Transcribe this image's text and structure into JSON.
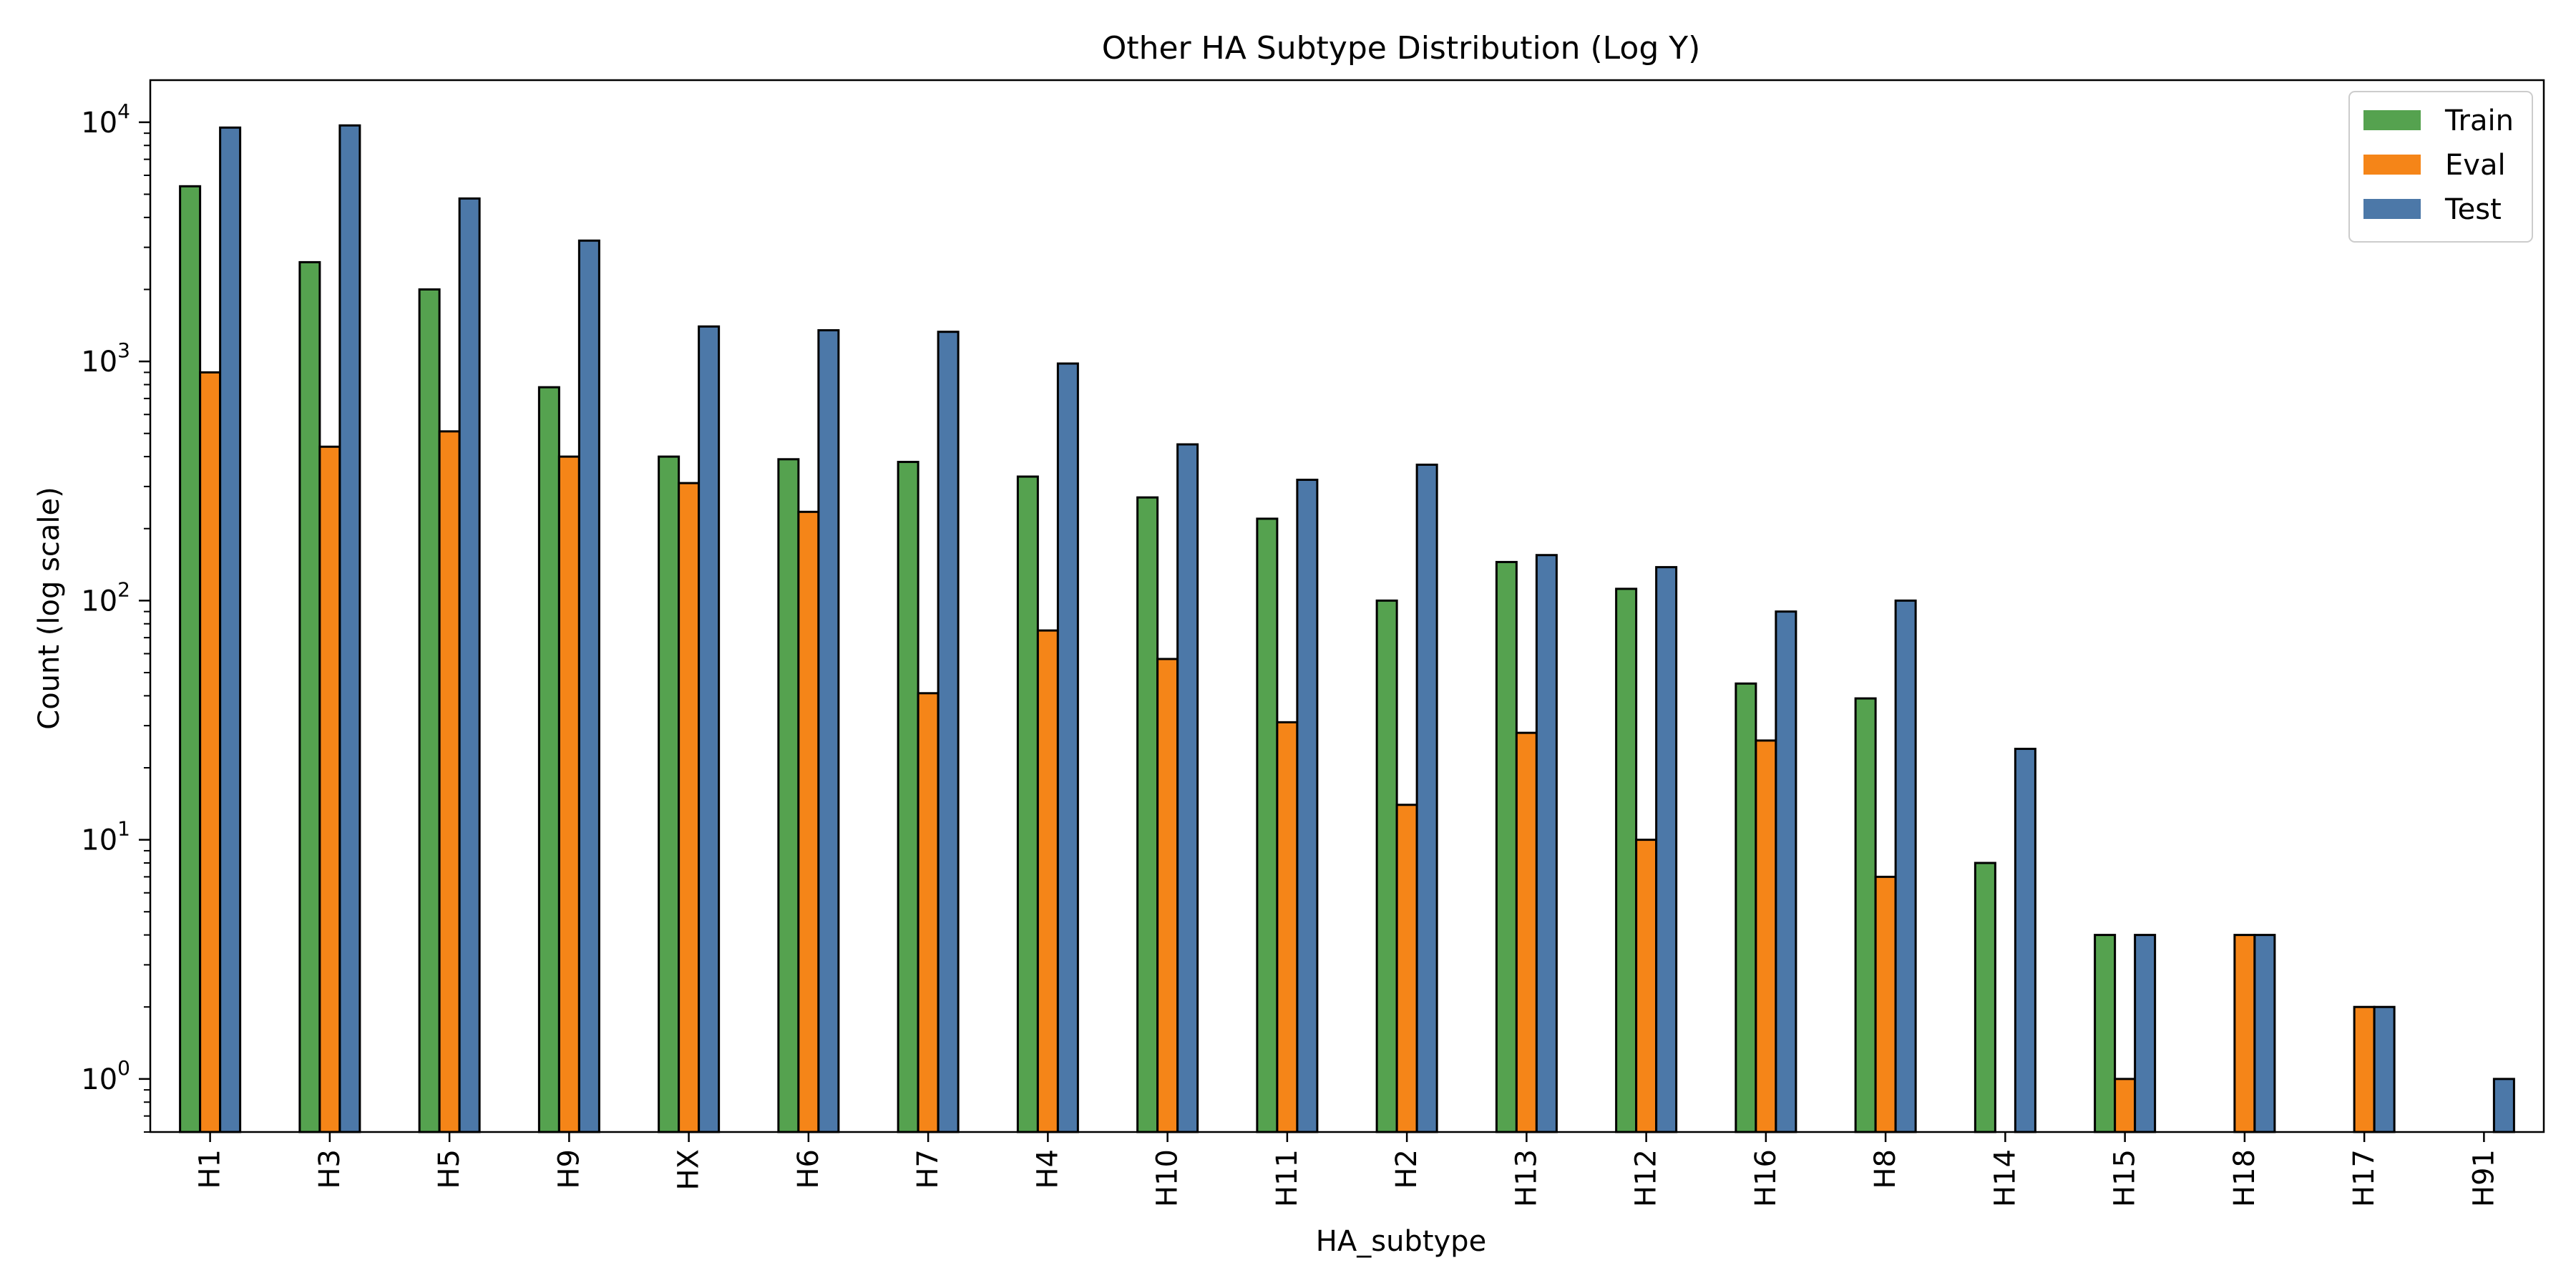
{
  "chart_data": {
    "type": "bar",
    "title": "Other HA Subtype Distribution (Log Y)",
    "xlabel": "HA_subtype",
    "ylabel": "Count (log scale)",
    "yscale": "log",
    "ylim": [
      0.6,
      15000
    ],
    "y_ticks": [
      {
        "value": 1,
        "base": "10",
        "exp": "0"
      },
      {
        "value": 10,
        "base": "10",
        "exp": "1"
      },
      {
        "value": 100,
        "base": "10",
        "exp": "2"
      },
      {
        "value": 1000,
        "base": "10",
        "exp": "3"
      },
      {
        "value": 10000,
        "base": "10",
        "exp": "4"
      }
    ],
    "grid": false,
    "legend_position": "top-right",
    "categories": [
      "H1",
      "H3",
      "H5",
      "H9",
      "HX",
      "H6",
      "H7",
      "H4",
      "H10",
      "H11",
      "H2",
      "H13",
      "H12",
      "H16",
      "H8",
      "H14",
      "H15",
      "H18",
      "H17",
      "H91"
    ],
    "series": [
      {
        "name": "Train",
        "color": "#55a24f",
        "values": [
          5400,
          2600,
          2000,
          780,
          400,
          390,
          380,
          330,
          270,
          220,
          100,
          145,
          112,
          45,
          39,
          8,
          4,
          null,
          null,
          null
        ]
      },
      {
        "name": "Eval",
        "color": "#f58518",
        "values": [
          900,
          440,
          510,
          400,
          310,
          235,
          41,
          75,
          57,
          31,
          14,
          28,
          10,
          26,
          7,
          null,
          1,
          4,
          2,
          null
        ]
      },
      {
        "name": "Test",
        "color": "#4c78a8",
        "values": [
          9500,
          9700,
          4800,
          3200,
          1400,
          1350,
          1330,
          980,
          450,
          320,
          370,
          155,
          138,
          90,
          100,
          24,
          4,
          4,
          2,
          1
        ]
      }
    ]
  }
}
